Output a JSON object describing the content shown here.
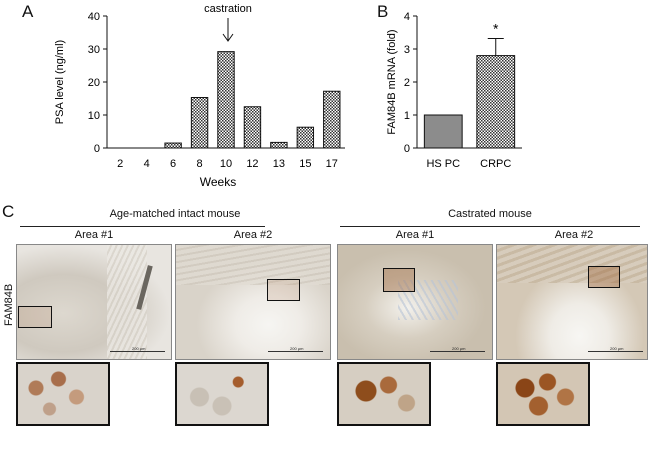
{
  "panels": {
    "a": "A",
    "b": "B",
    "c": "C"
  },
  "chart_data": [
    {
      "type": "bar",
      "categories": [
        "2",
        "4",
        "6",
        "8",
        "10",
        "12",
        "13",
        "15",
        "17"
      ],
      "values": [
        0,
        0,
        1.5,
        15.3,
        29.2,
        12.5,
        1.7,
        6.3,
        17.2
      ],
      "xlabel": "Weeks",
      "ylabel": "PSA level (ng/ml)",
      "ylim": [
        0,
        40
      ],
      "yticks": [
        "0",
        "10",
        "20",
        "30",
        "40"
      ],
      "annotation": {
        "text": "castration",
        "category": "10"
      }
    },
    {
      "type": "bar",
      "categories": [
        "HS PC",
        "CRPC"
      ],
      "values": [
        1.0,
        2.8
      ],
      "errors": [
        0,
        0.52
      ],
      "ylabel": "FAM84B mRNA (fold)",
      "ylim": [
        0,
        4
      ],
      "yticks": [
        "0",
        "1",
        "2",
        "3",
        "4"
      ],
      "significance": {
        "text": "*",
        "category": "CRPC"
      }
    }
  ],
  "panelC": {
    "groups": [
      "Age-matched intact mouse",
      "Castrated mouse"
    ],
    "areas": [
      "Area #1",
      "Area #2",
      "Area #1",
      "Area #2"
    ],
    "row_label": "FAM84B",
    "scale": "200 μm"
  }
}
